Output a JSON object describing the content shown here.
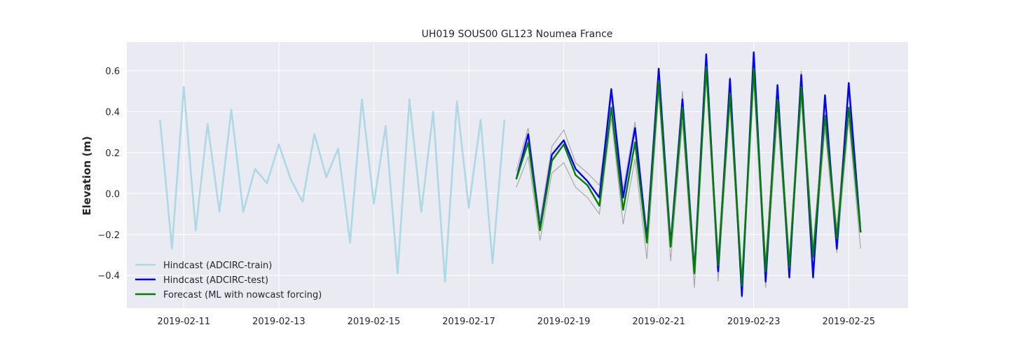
{
  "chart_data": {
    "type": "line",
    "title": "UH019 SOUS00 GL123 Noumea France",
    "xlabel": "",
    "ylabel": "Elevation (m)",
    "x_axis_type": "date",
    "xlim": [
      "2019-02-09T19:12",
      "2019-02-26T06:00"
    ],
    "ylim": [
      -0.56,
      0.74
    ],
    "grid": true,
    "legend_position": "lower-left",
    "x_ticks": [
      "2019-02-11",
      "2019-02-13",
      "2019-02-15",
      "2019-02-17",
      "2019-02-19",
      "2019-02-21",
      "2019-02-23",
      "2019-02-25"
    ],
    "y_ticks": [
      -0.4,
      -0.2,
      0.0,
      0.2,
      0.4,
      0.6
    ],
    "y_tick_labels": [
      "−0.4",
      "−0.2",
      "0.0",
      "0.2",
      "0.4",
      "0.6"
    ],
    "series": [
      {
        "name": "Hindcast (ADCIRC-train)",
        "color": "#add8e6",
        "x": [
          "2019-02-10T12:00",
          "2019-02-10T18:00",
          "2019-02-11T00:00",
          "2019-02-11T06:00",
          "2019-02-11T12:00",
          "2019-02-11T18:00",
          "2019-02-12T00:00",
          "2019-02-12T06:00",
          "2019-02-12T12:00",
          "2019-02-12T18:00",
          "2019-02-13T00:00",
          "2019-02-13T06:00",
          "2019-02-13T12:00",
          "2019-02-13T18:00",
          "2019-02-14T00:00",
          "2019-02-14T06:00",
          "2019-02-14T12:00",
          "2019-02-14T18:00",
          "2019-02-15T00:00",
          "2019-02-15T06:00",
          "2019-02-15T12:00",
          "2019-02-15T18:00",
          "2019-02-16T00:00",
          "2019-02-16T06:00",
          "2019-02-16T12:00",
          "2019-02-16T18:00",
          "2019-02-17T00:00",
          "2019-02-17T06:00",
          "2019-02-17T12:00",
          "2019-02-17T18:00"
        ],
        "y": [
          0.36,
          -0.27,
          0.52,
          -0.18,
          0.34,
          -0.09,
          0.41,
          -0.09,
          0.12,
          0.05,
          0.24,
          0.07,
          -0.04,
          0.29,
          0.08,
          0.22,
          -0.24,
          0.46,
          -0.05,
          0.33,
          -0.39,
          0.46,
          -0.09,
          0.4,
          -0.43,
          0.45,
          -0.07,
          0.36,
          -0.34,
          0.36
        ]
      },
      {
        "name": "Hindcast (ADCIRC-test)",
        "color": "#0000ff",
        "x": [
          "2019-02-18T00:00",
          "2019-02-18T06:00",
          "2019-02-18T12:00",
          "2019-02-18T18:00",
          "2019-02-19T00:00",
          "2019-02-19T06:00",
          "2019-02-19T12:00",
          "2019-02-19T18:00",
          "2019-02-20T00:00",
          "2019-02-20T06:00",
          "2019-02-20T12:00",
          "2019-02-20T18:00",
          "2019-02-21T00:00",
          "2019-02-21T06:00",
          "2019-02-21T12:00",
          "2019-02-21T18:00",
          "2019-02-22T00:00",
          "2019-02-22T06:00",
          "2019-02-22T12:00",
          "2019-02-22T18:00",
          "2019-02-23T00:00",
          "2019-02-23T06:00",
          "2019-02-23T12:00",
          "2019-02-23T18:00",
          "2019-02-24T00:00",
          "2019-02-24T06:00",
          "2019-02-24T12:00",
          "2019-02-24T18:00",
          "2019-02-25T00:00",
          "2019-02-25T06:00"
        ],
        "y": [
          0.07,
          0.29,
          -0.17,
          0.19,
          0.26,
          0.12,
          0.06,
          -0.02,
          0.51,
          -0.02,
          0.32,
          -0.22,
          0.61,
          -0.25,
          0.46,
          -0.38,
          0.68,
          -0.38,
          0.56,
          -0.5,
          0.69,
          -0.43,
          0.53,
          -0.41,
          0.58,
          -0.41,
          0.48,
          -0.27,
          0.54,
          -0.19
        ]
      },
      {
        "name": "Forecast (ML with nowcast forcing)",
        "color": "#008000",
        "x": [
          "2019-02-18T00:00",
          "2019-02-18T06:00",
          "2019-02-18T12:00",
          "2019-02-18T18:00",
          "2019-02-19T00:00",
          "2019-02-19T06:00",
          "2019-02-19T12:00",
          "2019-02-19T18:00",
          "2019-02-20T00:00",
          "2019-02-20T06:00",
          "2019-02-20T12:00",
          "2019-02-20T18:00",
          "2019-02-21T00:00",
          "2019-02-21T06:00",
          "2019-02-21T12:00",
          "2019-02-21T18:00",
          "2019-02-22T00:00",
          "2019-02-22T06:00",
          "2019-02-22T12:00",
          "2019-02-22T18:00",
          "2019-02-23T00:00",
          "2019-02-23T06:00",
          "2019-02-23T12:00",
          "2019-02-23T18:00",
          "2019-02-24T00:00",
          "2019-02-24T06:00",
          "2019-02-24T12:00",
          "2019-02-24T18:00",
          "2019-02-25T00:00",
          "2019-02-25T06:00"
        ],
        "y": [
          0.07,
          0.25,
          -0.18,
          0.16,
          0.24,
          0.09,
          0.04,
          -0.06,
          0.42,
          -0.08,
          0.25,
          -0.24,
          0.55,
          -0.26,
          0.42,
          -0.39,
          0.62,
          -0.35,
          0.49,
          -0.45,
          0.61,
          -0.38,
          0.46,
          -0.36,
          0.52,
          -0.31,
          0.38,
          -0.22,
          0.42,
          -0.19
        ]
      }
    ],
    "uncertainty_band": {
      "color": "#a9a9a9",
      "x": [
        "2019-02-18T00:00",
        "2019-02-18T06:00",
        "2019-02-18T12:00",
        "2019-02-18T18:00",
        "2019-02-19T00:00",
        "2019-02-19T06:00",
        "2019-02-19T12:00",
        "2019-02-19T18:00",
        "2019-02-20T00:00",
        "2019-02-20T06:00",
        "2019-02-20T12:00",
        "2019-02-20T18:00",
        "2019-02-21T00:00",
        "2019-02-21T06:00",
        "2019-02-21T12:00",
        "2019-02-21T18:00",
        "2019-02-22T00:00",
        "2019-02-22T06:00",
        "2019-02-22T12:00",
        "2019-02-22T18:00",
        "2019-02-23T00:00",
        "2019-02-23T06:00",
        "2019-02-23T12:00",
        "2019-02-23T18:00",
        "2019-02-24T00:00",
        "2019-02-24T06:00",
        "2019-02-24T12:00",
        "2019-02-24T18:00",
        "2019-02-25T00:00",
        "2019-02-25T06:00"
      ],
      "upper": [
        0.11,
        0.32,
        -0.13,
        0.23,
        0.31,
        0.15,
        0.1,
        0.04,
        0.47,
        0.02,
        0.35,
        -0.2,
        0.61,
        -0.22,
        0.5,
        -0.35,
        0.67,
        -0.3,
        0.57,
        -0.4,
        0.67,
        -0.33,
        0.53,
        -0.31,
        0.6,
        -0.26,
        0.44,
        -0.17,
        0.49,
        -0.15
      ],
      "lower": [
        0.03,
        0.18,
        -0.23,
        0.1,
        0.15,
        0.03,
        -0.02,
        -0.1,
        0.37,
        -0.15,
        0.17,
        -0.32,
        0.49,
        -0.33,
        0.35,
        -0.46,
        0.57,
        -0.43,
        0.43,
        -0.51,
        0.55,
        -0.46,
        0.38,
        -0.41,
        0.46,
        -0.38,
        0.32,
        -0.29,
        0.36,
        -0.27
      ]
    }
  }
}
